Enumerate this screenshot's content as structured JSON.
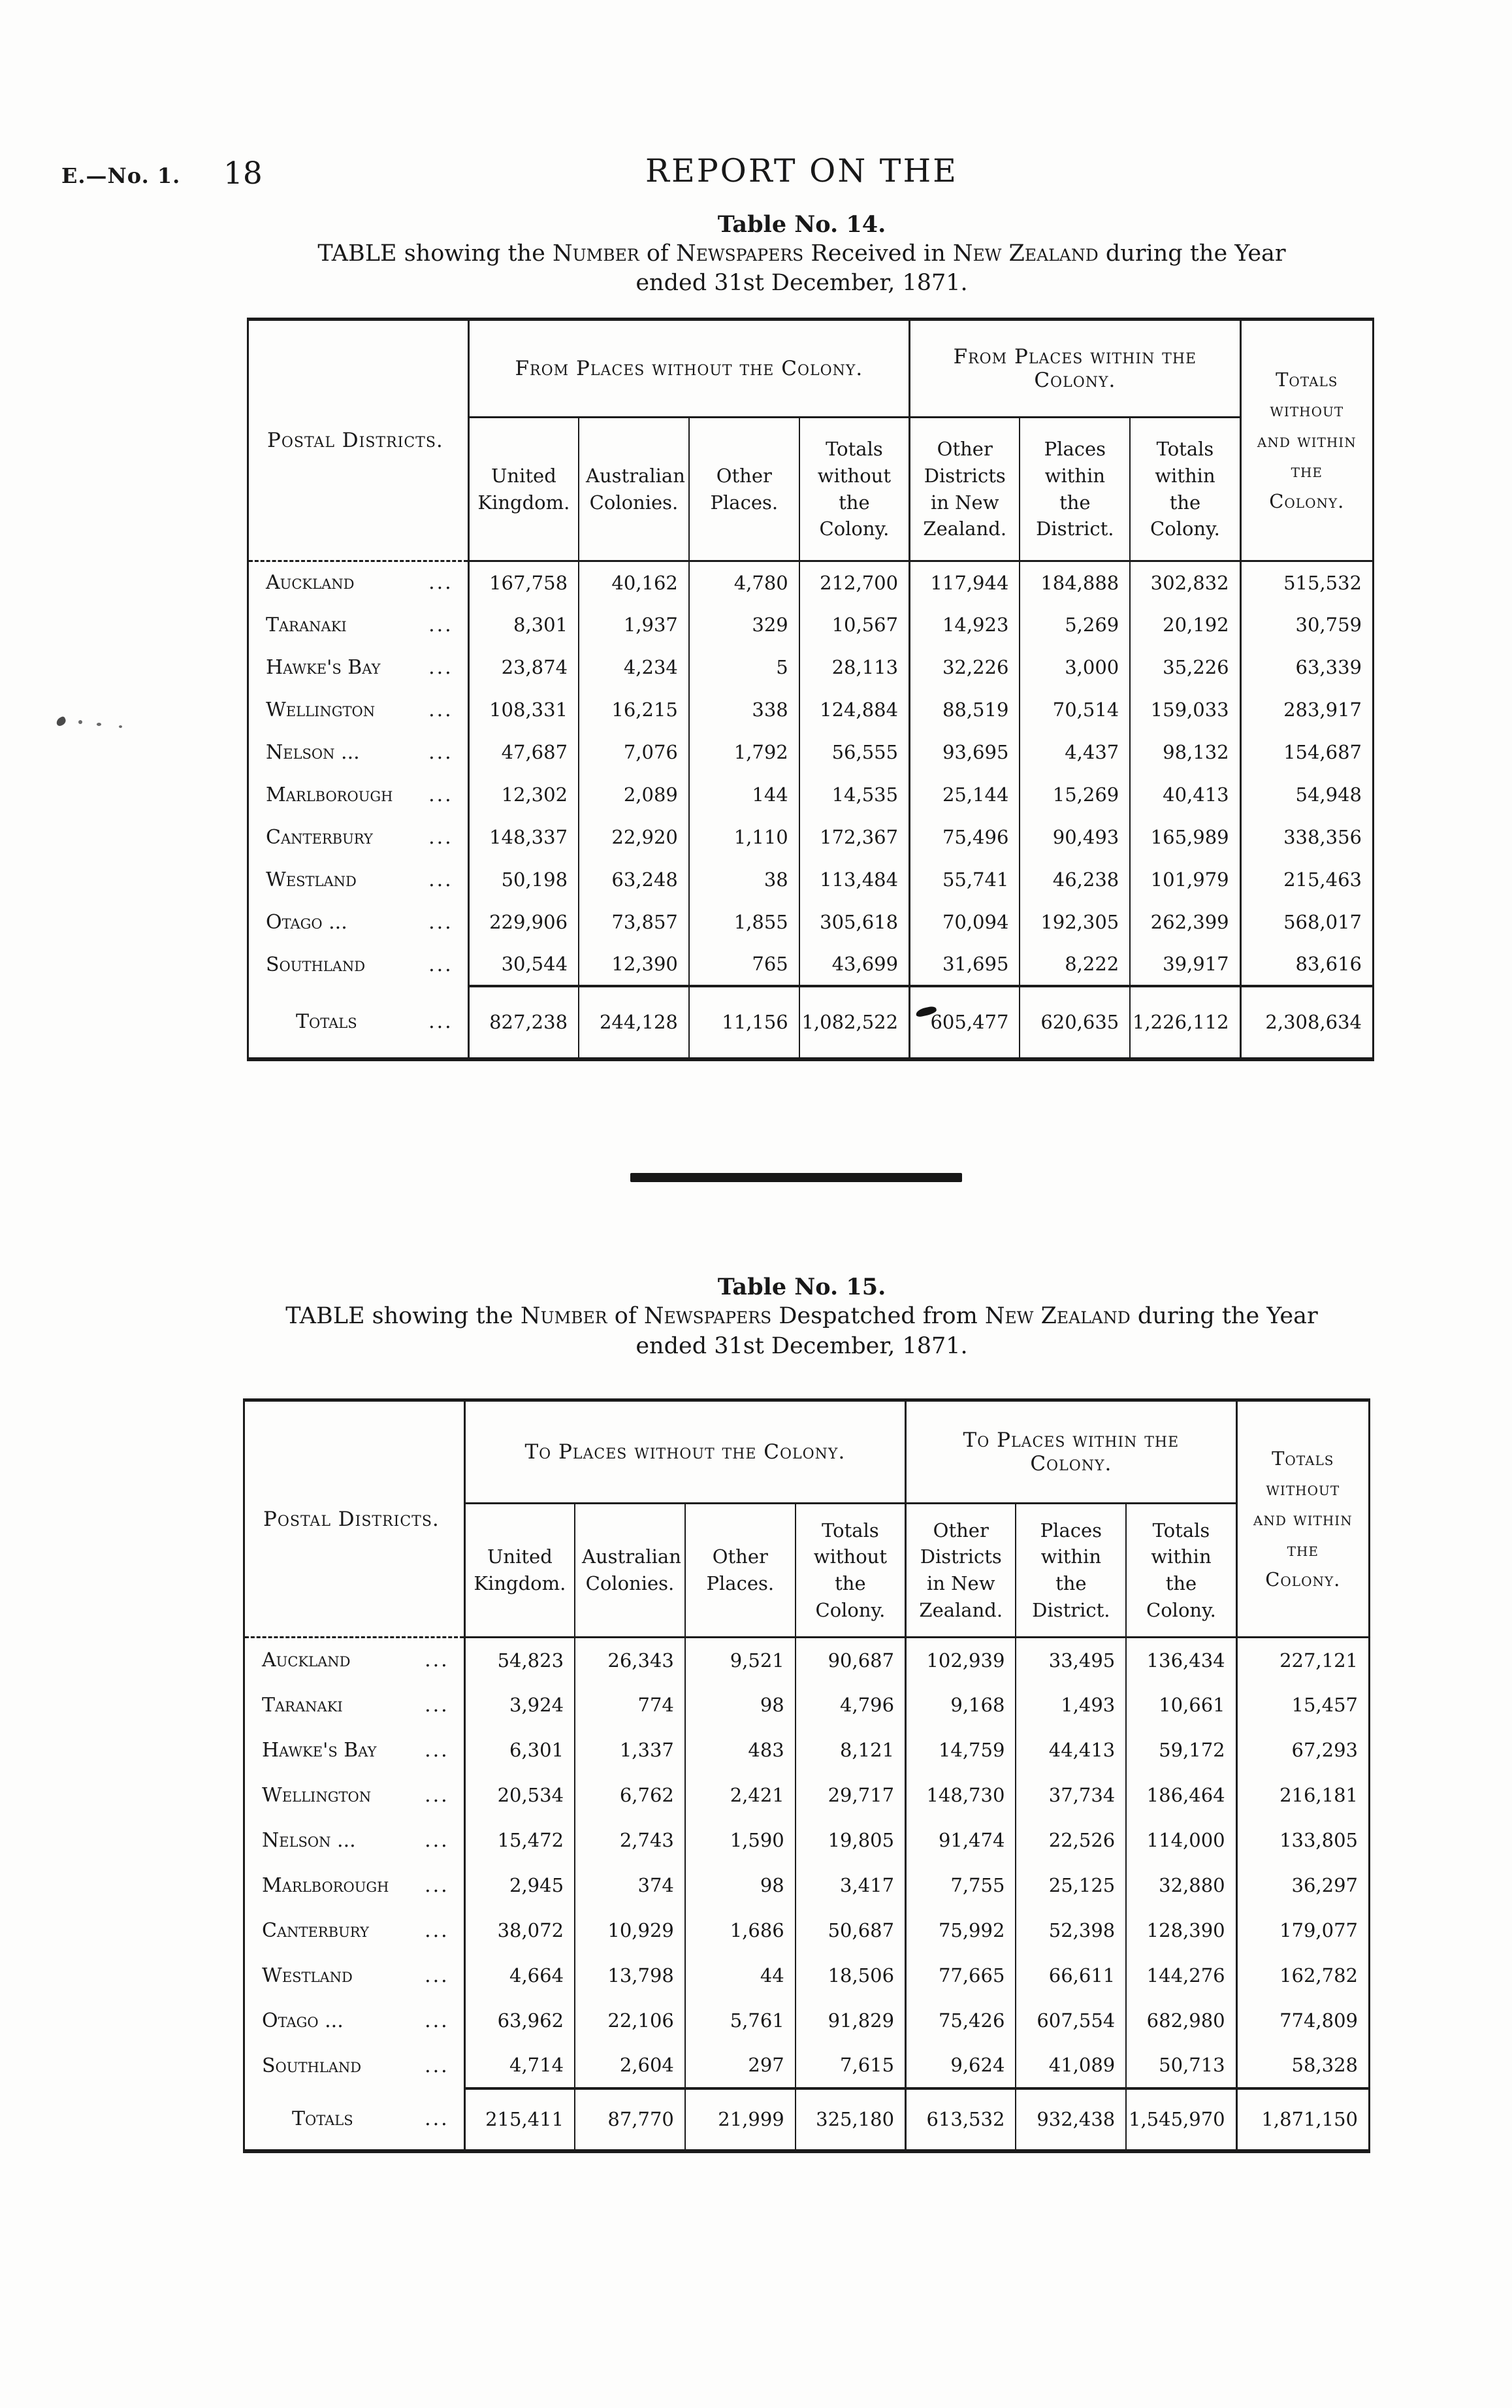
{
  "page": {
    "doc_ref": "E.—No. 1.",
    "page_number": "18",
    "running_title": "REPORT ON THE"
  },
  "table14": {
    "title": "Table No. 14.",
    "caption": {
      "lead": "TABLE",
      "m1": " showing the ",
      "s1": "Number",
      "m2": " of ",
      "s2": "Newspapers",
      "m3": " Received in ",
      "s3": "New Zealand",
      "m4": " during the Year",
      "line2": "ended 31st December, 1871."
    },
    "header": {
      "postal_districts": "Postal Districts.",
      "group_without": "From Places without the Colony.",
      "group_within": "From Places within the Colony.",
      "grand_total": "Totals without and within the Colony.",
      "sub": [
        "United Kingdom.",
        "Australian Colonies.",
        "Other Places.",
        "Totals without the Colony.",
        "Other Districts in New Zealand.",
        "Places within the District.",
        "Totals within the Colony."
      ]
    },
    "rows": [
      {
        "name": "Auckland",
        "leader": "...",
        "values": [
          "167,758",
          "40,162",
          "4,780",
          "212,700",
          "117,944",
          "184,888",
          "302,832",
          "515,532"
        ]
      },
      {
        "name": "Taranaki",
        "leader": "...",
        "values": [
          "8,301",
          "1,937",
          "329",
          "10,567",
          "14,923",
          "5,269",
          "20,192",
          "30,759"
        ]
      },
      {
        "name": "Hawke's Bay",
        "leader": "...",
        "values": [
          "23,874",
          "4,234",
          "5",
          "28,113",
          "32,226",
          "3,000",
          "35,226",
          "63,339"
        ]
      },
      {
        "name": "Wellington",
        "leader": "...",
        "values": [
          "108,331",
          "16,215",
          "338",
          "124,884",
          "88,519",
          "70,514",
          "159,033",
          "283,917"
        ]
      },
      {
        "name": "Nelson ...",
        "leader": "...",
        "values": [
          "47,687",
          "7,076",
          "1,792",
          "56,555",
          "93,695",
          "4,437",
          "98,132",
          "154,687"
        ]
      },
      {
        "name": "Marlborough",
        "leader": "...",
        "values": [
          "12,302",
          "2,089",
          "144",
          "14,535",
          "25,144",
          "15,269",
          "40,413",
          "54,948"
        ]
      },
      {
        "name": "Canterbury",
        "leader": "...",
        "values": [
          "148,337",
          "22,920",
          "1,110",
          "172,367",
          "75,496",
          "90,493",
          "165,989",
          "338,356"
        ]
      },
      {
        "name": "Westland",
        "leader": "...",
        "values": [
          "50,198",
          "63,248",
          "38",
          "113,484",
          "55,741",
          "46,238",
          "101,979",
          "215,463"
        ]
      },
      {
        "name": "Otago ...",
        "leader": "...",
        "values": [
          "229,906",
          "73,857",
          "1,855",
          "305,618",
          "70,094",
          "192,305",
          "262,399",
          "568,017"
        ]
      },
      {
        "name": "Southland",
        "leader": "...",
        "values": [
          "30,544",
          "12,390",
          "765",
          "43,699",
          "31,695",
          "8,222",
          "39,917",
          "83,616"
        ]
      }
    ],
    "totals": {
      "label": "Totals",
      "leader": "...",
      "values": [
        "827,238",
        "244,128",
        "11,156",
        "1,082,522",
        "605,477",
        "620,635",
        "1,226,112",
        "2,308,634"
      ]
    }
  },
  "table15": {
    "title": "Table No. 15.",
    "caption": {
      "lead": "TABLE",
      "m1": " showing the ",
      "s1": "Number",
      "m2": " of ",
      "s2": "Newspapers",
      "m3": " Despatched from ",
      "s3": "New Zealand",
      "m4": " during the Year",
      "line2": "ended 31st December, 1871."
    },
    "header": {
      "postal_districts": "Postal Districts.",
      "group_without": "To Places without the Colony.",
      "group_within": "To Places within the Colony.",
      "grand_total": "Totals without and within the Colony.",
      "sub": [
        "United Kingdom.",
        "Australian Colonies.",
        "Other Places.",
        "Totals without the Colony.",
        "Other Districts in New Zealand.",
        "Places within the District.",
        "Totals within the Colony."
      ]
    },
    "rows": [
      {
        "name": "Auckland",
        "leader": "...",
        "values": [
          "54,823",
          "26,343",
          "9,521",
          "90,687",
          "102,939",
          "33,495",
          "136,434",
          "227,121"
        ]
      },
      {
        "name": "Taranaki",
        "leader": "...",
        "values": [
          "3,924",
          "774",
          "98",
          "4,796",
          "9,168",
          "1,493",
          "10,661",
          "15,457"
        ]
      },
      {
        "name": "Hawke's Bay",
        "leader": "...",
        "values": [
          "6,301",
          "1,337",
          "483",
          "8,121",
          "14,759",
          "44,413",
          "59,172",
          "67,293"
        ]
      },
      {
        "name": "Wellington",
        "leader": "...",
        "values": [
          "20,534",
          "6,762",
          "2,421",
          "29,717",
          "148,730",
          "37,734",
          "186,464",
          "216,181"
        ]
      },
      {
        "name": "Nelson ...",
        "leader": "...",
        "values": [
          "15,472",
          "2,743",
          "1,590",
          "19,805",
          "91,474",
          "22,526",
          "114,000",
          "133,805"
        ]
      },
      {
        "name": "Marlborough",
        "leader": "...",
        "values": [
          "2,945",
          "374",
          "98",
          "3,417",
          "7,755",
          "25,125",
          "32,880",
          "36,297"
        ]
      },
      {
        "name": "Canterbury",
        "leader": "...",
        "values": [
          "38,072",
          "10,929",
          "1,686",
          "50,687",
          "75,992",
          "52,398",
          "128,390",
          "179,077"
        ]
      },
      {
        "name": "Westland",
        "leader": "...",
        "values": [
          "4,664",
          "13,798",
          "44",
          "18,506",
          "77,665",
          "66,611",
          "144,276",
          "162,782"
        ]
      },
      {
        "name": "Otago ...",
        "leader": "...",
        "values": [
          "63,962",
          "22,106",
          "5,761",
          "91,829",
          "75,426",
          "607,554",
          "682,980",
          "774,809"
        ]
      },
      {
        "name": "Southland",
        "leader": "...",
        "values": [
          "4,714",
          "2,604",
          "297",
          "7,615",
          "9,624",
          "41,089",
          "50,713",
          "58,328"
        ]
      }
    ],
    "totals": {
      "label": "Totals",
      "leader": "...",
      "values": [
        "215,411",
        "87,770",
        "21,999",
        "325,180",
        "613,532",
        "932,438",
        "1,545,970",
        "1,871,150"
      ]
    }
  }
}
